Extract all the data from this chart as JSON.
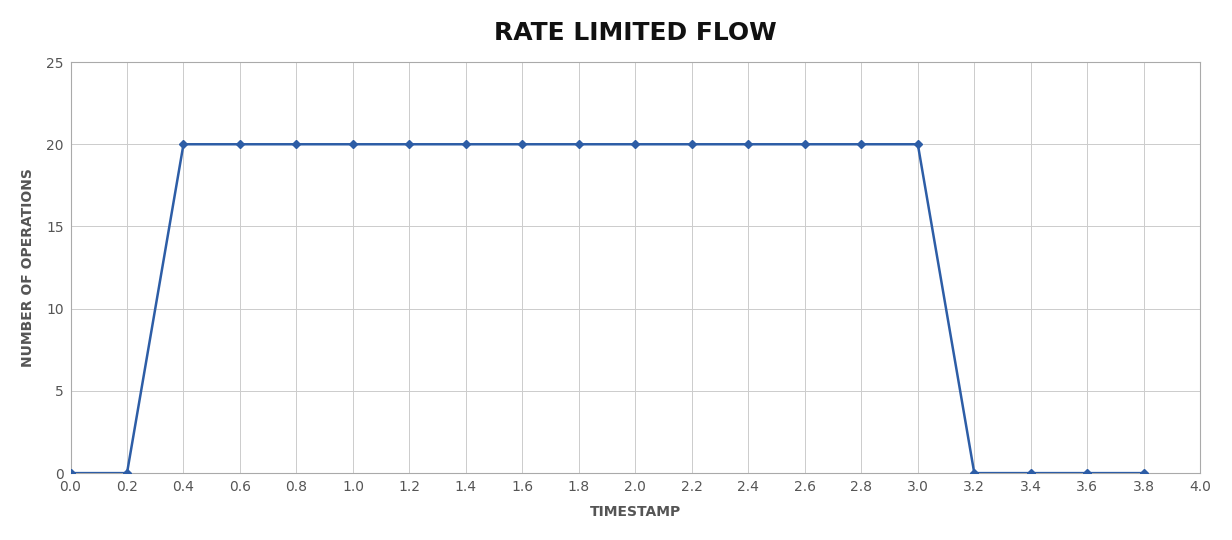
{
  "title": "RATE LIMITED FLOW",
  "xlabel": "TIMESTAMP",
  "ylabel": "NUMBER OF OPERATIONS",
  "x": [
    0.0,
    0.2,
    0.4,
    0.6,
    0.8,
    1.0,
    1.2,
    1.4,
    1.6,
    1.8,
    2.0,
    2.2,
    2.4,
    2.6,
    2.8,
    3.0,
    3.2,
    3.4,
    3.6,
    3.8
  ],
  "y": [
    0,
    0,
    20,
    20,
    20,
    20,
    20,
    20,
    20,
    20,
    20,
    20,
    20,
    20,
    20,
    20,
    0,
    0,
    0,
    0
  ],
  "line_color": "#2d5da6",
  "marker": "D",
  "marker_size": 4,
  "line_width": 1.8,
  "xlim": [
    0.0,
    4.0
  ],
  "ylim": [
    0,
    25
  ],
  "xticks": [
    0.0,
    0.2,
    0.4,
    0.6,
    0.8,
    1.0,
    1.2,
    1.4,
    1.6,
    1.8,
    2.0,
    2.2,
    2.4,
    2.6,
    2.8,
    3.0,
    3.2,
    3.4,
    3.6,
    3.8,
    4.0
  ],
  "yticks": [
    0,
    5,
    10,
    15,
    20,
    25
  ],
  "grid_color": "#cccccc",
  "grid_linewidth": 0.7,
  "background_color": "#ffffff",
  "plot_bg_color": "#ffffff",
  "title_fontsize": 18,
  "axis_label_fontsize": 10,
  "tick_fontsize": 10,
  "tick_color": "#555555",
  "spine_color": "#aaaaaa"
}
